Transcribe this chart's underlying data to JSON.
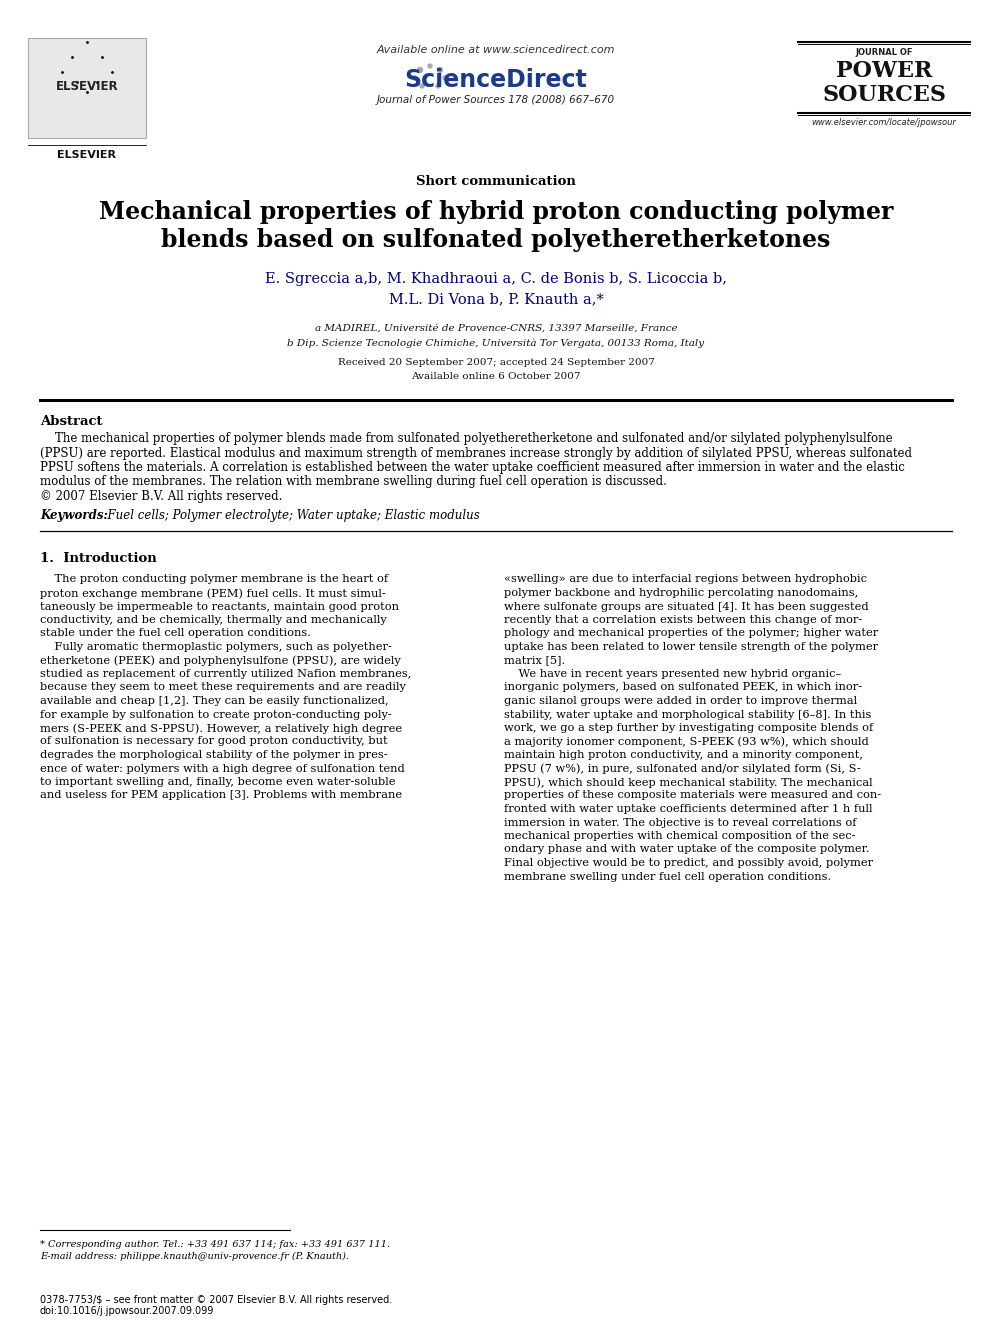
{
  "bg_color": "#ffffff",
  "text_color": "#000000",
  "available_online": "Available online at www.sciencedirect.com",
  "journal_info": "Journal of Power Sources 178 (2008) 667–670",
  "website": "www.elsevier.com/locate/jpowsour",
  "section": "Short communication",
  "title_line1": "Mechanical properties of hybrid proton conducting polymer",
  "title_line2": "blends based on sulfonated polyetheretherketones",
  "author_line1": "E. Sgreccia a,b, M. Khadhraoui a, C. de Bonis b, S. Licoccia b,",
  "author_line2": "M.L. Di Vona b, P. Knauth a,*",
  "affil_a": "a MADIREL, Université de Provence-CNRS, 13397 Marseille, France",
  "affil_b": "b Dip. Scienze Tecnologie Chimiche, Università Tor Vergata, 00133 Roma, Italy",
  "received": "Received 20 September 2007; accepted 24 September 2007",
  "available": "Available online 6 October 2007",
  "abstract_title": "Abstract",
  "abstract_lines": [
    "    The mechanical properties of polymer blends made from sulfonated polyetheretherketone and sulfonated and/or silylated polyphenylsulfone",
    "(PPSU) are reported. Elastical modulus and maximum strength of membranes increase strongly by addition of silylated PPSU, whereas sulfonated",
    "PPSU softens the materials. A correlation is established between the water uptake coefficient measured after immersion in water and the elastic",
    "modulus of the membranes. The relation with membrane swelling during fuel cell operation is discussed.",
    "© 2007 Elsevier B.V. All rights reserved."
  ],
  "keywords_label": "Keywords:",
  "keywords_text": "  Fuel cells; Polymer electrolyte; Water uptake; Elastic modulus",
  "intro_title": "1.  Introduction",
  "left_col_lines": [
    "    The proton conducting polymer membrane is the heart of",
    "proton exchange membrane (PEM) fuel cells. It must simul-",
    "taneously be impermeable to reactants, maintain good proton",
    "conductivity, and be chemically, thermally and mechanically",
    "stable under the fuel cell operation conditions.",
    "    Fully aromatic thermoplastic polymers, such as polyether-",
    "etherketone (PEEK) and polyphenylsulfone (PPSU), are widely",
    "studied as replacement of currently utilized Nafion membranes,",
    "because they seem to meet these requirements and are readily",
    "available and cheap [1,2]. They can be easily functionalized,",
    "for example by sulfonation to create proton-conducting poly-",
    "mers (S-PEEK and S-PPSU). However, a relatively high degree",
    "of sulfonation is necessary for good proton conductivity, but",
    "degrades the morphological stability of the polymer in pres-",
    "ence of water: polymers with a high degree of sulfonation tend",
    "to important swelling and, finally, become even water-soluble",
    "and useless for PEM application [3]. Problems with membrane"
  ],
  "right_col_lines": [
    "«swelling» are due to interfacial regions between hydrophobic",
    "polymer backbone and hydrophilic percolating nanodomains,",
    "where sulfonate groups are situated [4]. It has been suggested",
    "recently that a correlation exists between this change of mor-",
    "phology and mechanical properties of the polymer; higher water",
    "uptake has been related to lower tensile strength of the polymer",
    "matrix [5].",
    "    We have in recent years presented new hybrid organic–",
    "inorganic polymers, based on sulfonated PEEK, in which inor-",
    "ganic silanol groups were added in order to improve thermal",
    "stability, water uptake and morphological stability [6–8]. In this",
    "work, we go a step further by investigating composite blends of",
    "a majority ionomer component, S-PEEK (93 w%), which should",
    "maintain high proton conductivity, and a minority component,",
    "PPSU (7 w%), in pure, sulfonated and/or silylated form (Si, S-",
    "PPSU), which should keep mechanical stability. The mechanical",
    "properties of these composite materials were measured and con-",
    "fronted with water uptake coefficients determined after 1 h full",
    "immersion in water. The objective is to reveal correlations of",
    "mechanical properties with chemical composition of the sec-",
    "ondary phase and with water uptake of the composite polymer.",
    "Final objective would be to predict, and possibly avoid, polymer",
    "membrane swelling under fuel cell operation conditions."
  ],
  "footnote_line1": "* Corresponding author. Tel.: +33 491 637 114; fax: +33 491 637 111.",
  "footnote_line2": "E-mail address: philippe.knauth@univ-provence.fr (P. Knauth).",
  "bottom1": "0378-7753/$ – see front matter © 2007 Elsevier B.V. All rights reserved.",
  "bottom2": "doi:10.1016/j.jpowsour.2007.09.099"
}
